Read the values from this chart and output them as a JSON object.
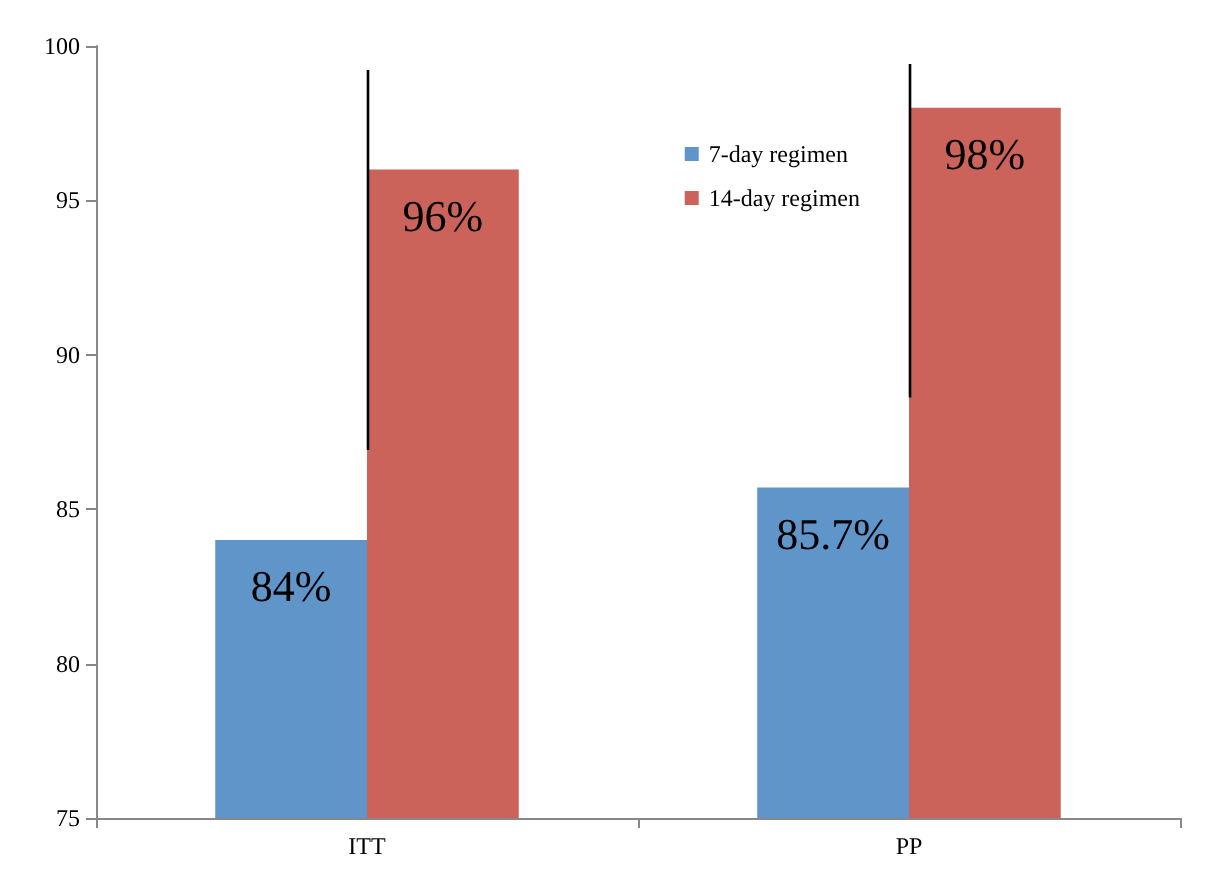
{
  "chart_data": {
    "type": "bar",
    "categories": [
      "ITT",
      "PP"
    ],
    "series": [
      {
        "name": "7-day regimen",
        "color": "#6095c9",
        "values": [
          84,
          85.7
        ],
        "value_labels": [
          "84%",
          "85.7%"
        ]
      },
      {
        "name": "14-day regimen",
        "color": "#cc635b",
        "values": [
          96,
          98
        ],
        "value_labels": [
          "96%",
          "98%"
        ]
      }
    ],
    "ylim": [
      75,
      100
    ],
    "yticks": [
      75,
      80,
      85,
      90,
      95,
      100
    ],
    "grid": false,
    "legend": "top right"
  }
}
